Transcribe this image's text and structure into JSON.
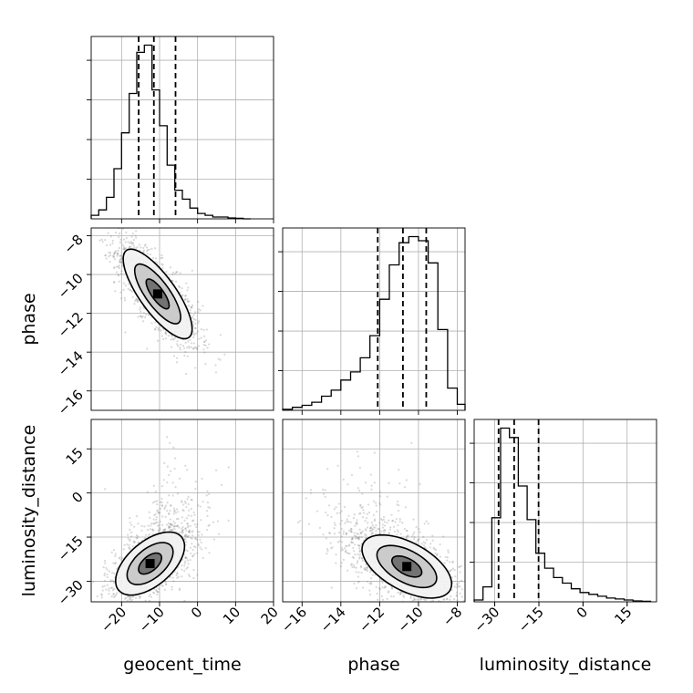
{
  "chart_data": {
    "type": "corner",
    "parameters": [
      "geocent_time",
      "phase",
      "luminosity_distance"
    ],
    "ranges": {
      "geocent_time": [
        -28,
        20
      ],
      "phase": [
        -17,
        -7.6
      ],
      "luminosity_distance": [
        -37,
        25
      ]
    },
    "ticks": {
      "geocent_time": [
        -20,
        -10,
        0,
        10,
        20
      ],
      "phase": [
        -16,
        -14,
        -12,
        -10,
        -8
      ],
      "luminosity_distance": [
        -30,
        -15,
        0,
        15
      ]
    },
    "tick_labels": {
      "geocent_time": [
        "−20",
        "−10",
        "0",
        "10",
        "20"
      ],
      "phase": [
        "−16",
        "−14",
        "−12",
        "−10",
        "−8"
      ],
      "luminosity_distance": [
        "−30",
        "−15",
        "0",
        "15"
      ]
    },
    "diagonal": [
      {
        "param": "geocent_time",
        "bin_edges": [
          -28,
          -26,
          -24,
          -22,
          -20,
          -18,
          -16,
          -14,
          -12,
          -10,
          -8,
          -6,
          -4,
          -2,
          0,
          2,
          4,
          6,
          8,
          10,
          12,
          14
        ],
        "counts": [
          2,
          5,
          12,
          28,
          48,
          70,
          93,
          97,
          72,
          52,
          30,
          16,
          11,
          6,
          3,
          2,
          1,
          1,
          0.5,
          0.3,
          0
        ],
        "quantiles": [
          -15.5,
          -11.5,
          -5.8
        ]
      },
      {
        "param": "phase",
        "bin_edges": [
          -17,
          -16.5,
          -16,
          -15.5,
          -15,
          -14.5,
          -14,
          -13.5,
          -13,
          -12.5,
          -12,
          -11.5,
          -11,
          -10.5,
          -10,
          -9.5,
          -9,
          -8.5,
          -8,
          -7.6
        ],
        "counts": [
          0.5,
          1.5,
          2.5,
          4,
          7,
          10,
          15,
          19,
          26,
          37,
          55,
          72,
          83,
          86,
          84,
          73,
          40,
          11,
          3
        ],
        "quantiles": [
          -12.1,
          -10.8,
          -9.6
        ]
      },
      {
        "param": "luminosity_distance",
        "bin_edges": [
          -37,
          -34,
          -31,
          -28,
          -25,
          -22,
          -19,
          -16,
          -13,
          -10,
          -7,
          -4,
          -1,
          2,
          5,
          8,
          11,
          14,
          17,
          20,
          23
        ],
        "counts": [
          1,
          8,
          45,
          93,
          88,
          62,
          44,
          26,
          18,
          13,
          10,
          7,
          5,
          4,
          3,
          2,
          1.5,
          1,
          0.5,
          0.3
        ],
        "quantiles": [
          -28.7,
          -23.4,
          -15.1
        ]
      }
    ],
    "pairs": [
      {
        "x": "geocent_time",
        "y": "phase",
        "mean": [
          -10.5,
          -11.0
        ],
        "std": [
          5.5,
          1.4
        ],
        "corr": -0.78,
        "contour_levels_sigma": [
          1.0,
          2.0,
          3.0
        ]
      },
      {
        "x": "geocent_time",
        "y": "luminosity_distance",
        "mean": [
          -12.5,
          -24.0
        ],
        "std": [
          5.5,
          6.5
        ],
        "corr": 0.55,
        "contour_levels_sigma": [
          1.0,
          2.0,
          3.0
        ]
      },
      {
        "x": "phase",
        "y": "luminosity_distance",
        "mean": [
          -10.6,
          -25.0
        ],
        "std": [
          1.4,
          6.5
        ],
        "corr": -0.55,
        "contour_levels_sigma": [
          1.0,
          2.0,
          3.0
        ]
      }
    ],
    "grid": true,
    "colors": {
      "hist": "#000000",
      "points": "#808080",
      "density_dark": "#000000"
    }
  }
}
